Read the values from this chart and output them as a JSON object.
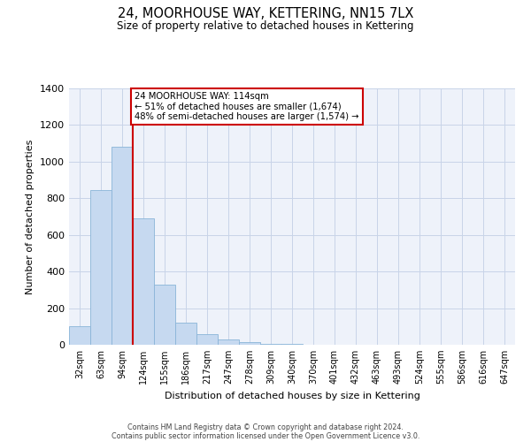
{
  "title": "24, MOORHOUSE WAY, KETTERING, NN15 7LX",
  "subtitle": "Size of property relative to detached houses in Kettering",
  "xlabel": "Distribution of detached houses by size in Kettering",
  "ylabel": "Number of detached properties",
  "bar_color": "#c6d9f0",
  "bar_edge_color": "#8ab4d8",
  "background_color": "#ffffff",
  "grid_color": "#c8d4e8",
  "categories": [
    "32sqm",
    "63sqm",
    "94sqm",
    "124sqm",
    "155sqm",
    "186sqm",
    "217sqm",
    "247sqm",
    "278sqm",
    "309sqm",
    "340sqm",
    "370sqm",
    "401sqm",
    "432sqm",
    "463sqm",
    "493sqm",
    "524sqm",
    "555sqm",
    "586sqm",
    "616sqm",
    "647sqm"
  ],
  "values": [
    100,
    845,
    1080,
    690,
    330,
    120,
    60,
    30,
    15,
    5,
    5,
    0,
    0,
    0,
    0,
    0,
    0,
    0,
    0,
    0,
    0
  ],
  "ylim": [
    0,
    1400
  ],
  "yticks": [
    0,
    200,
    400,
    600,
    800,
    1000,
    1200,
    1400
  ],
  "red_line_x": 2.5,
  "annotation_text_line1": "24 MOORHOUSE WAY: 114sqm",
  "annotation_text_line2": "← 51% of detached houses are smaller (1,674)",
  "annotation_text_line3": "48% of semi-detached houses are larger (1,574) →",
  "annotation_box_color": "#ffffff",
  "annotation_box_edge": "#cc0000",
  "red_line_color": "#cc0000",
  "footer_line1": "Contains HM Land Registry data © Crown copyright and database right 2024.",
  "footer_line2": "Contains public sector information licensed under the Open Government Licence v3.0."
}
